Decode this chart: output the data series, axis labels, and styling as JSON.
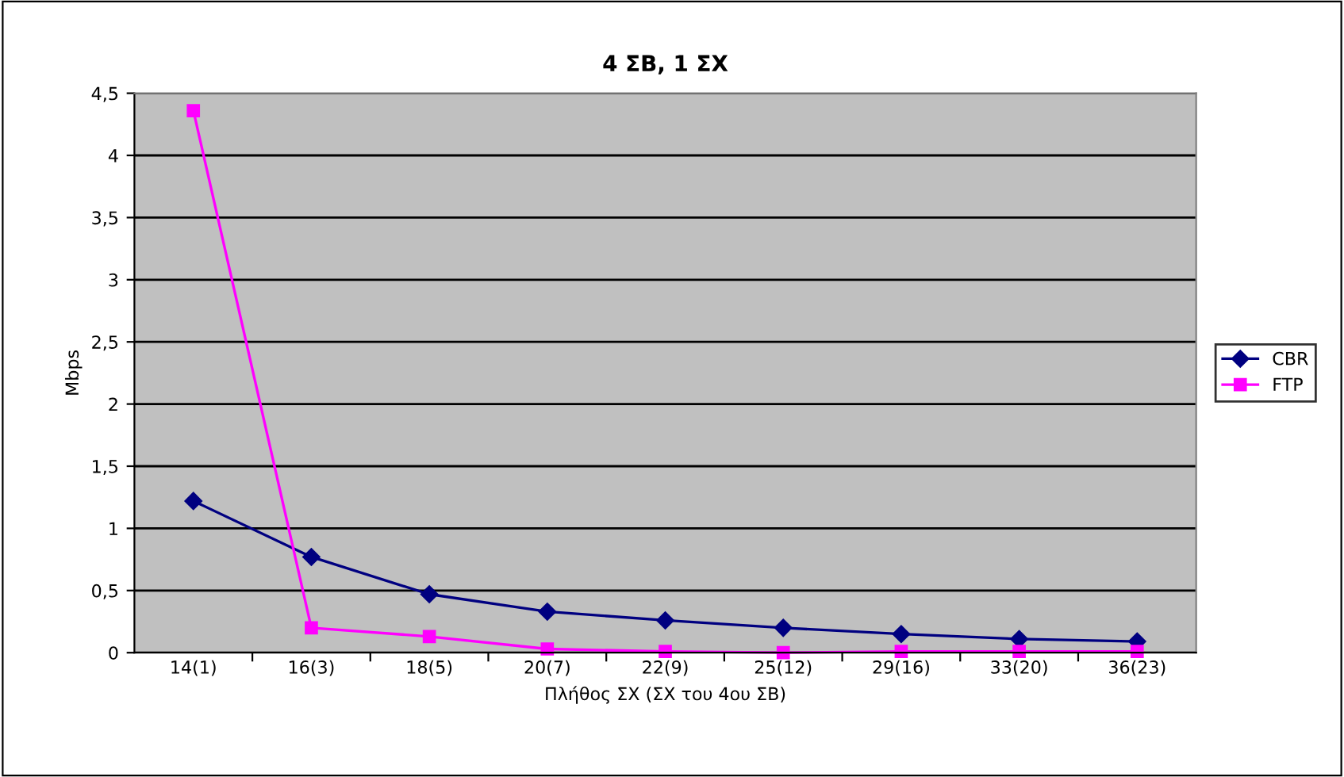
{
  "chart_data": {
    "type": "line",
    "title": "4 ΣΒ, 1 ΣΧ",
    "xlabel": "Πλήθος ΣΧ (ΣΧ του 4ου ΣΒ)",
    "ylabel": "Mbps",
    "categories": [
      "14(1)",
      "16(3)",
      "18(5)",
      "20(7)",
      "22(9)",
      "25(12)",
      "29(16)",
      "33(20)",
      "36(23)"
    ],
    "series": [
      {
        "name": "CBR",
        "color": "#000080",
        "marker": "diamond",
        "values": [
          1.22,
          0.77,
          0.47,
          0.33,
          0.26,
          0.2,
          0.15,
          0.11,
          0.09
        ]
      },
      {
        "name": "FTP",
        "color": "#ff00ff",
        "marker": "square",
        "values": [
          4.36,
          0.2,
          0.13,
          0.03,
          0.01,
          0.0,
          0.01,
          0.01,
          0.01
        ]
      }
    ],
    "ylim": [
      0,
      4.5
    ],
    "yticks": [
      0,
      {
        "value": 0.5,
        "label": "0,5"
      },
      1,
      {
        "value": 1.5,
        "label": "1,5"
      },
      2,
      {
        "value": 2.5,
        "label": "2,5"
      },
      3,
      {
        "value": 3.5,
        "label": "3,5"
      },
      4,
      {
        "value": 4.5,
        "label": "4,5"
      }
    ],
    "grid": "y",
    "legend": "right"
  }
}
